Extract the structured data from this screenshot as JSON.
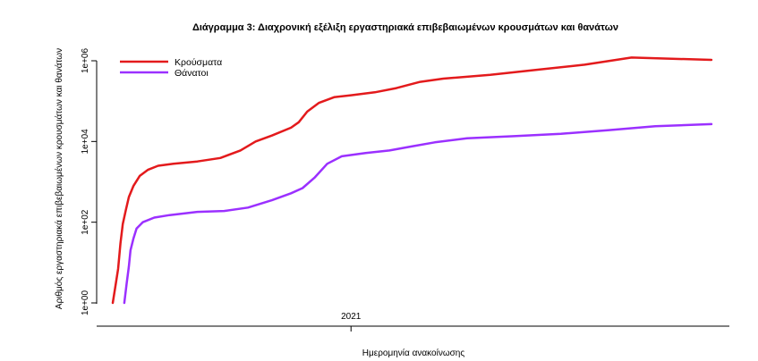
{
  "chart_data": {
    "type": "line",
    "title": "Διάγραμμα 3: Διαχρονική εξέλιξη εργαστηριακά επιβεβαιωμένων κρουσμάτων και θανάτων",
    "xlabel": "Ημερομηνία ανακοίνωσης",
    "ylabel": "Αριθμός εργαστηριακά επιβεβαιωμένων κρουσμάτων και θανάτων",
    "y_scale": "log10",
    "ylim": [
      1,
      1000000
    ],
    "y_ticks": [
      {
        "value": 1,
        "label": "1e+00"
      },
      {
        "value": 100,
        "label": "1e+02"
      },
      {
        "value": 10000,
        "label": "1e+04"
      },
      {
        "value": 1000000,
        "label": "1e+06"
      }
    ],
    "xlim": [
      "2020-02-26",
      "2022-04-15"
    ],
    "x_ticks": [
      {
        "value": "2021-01-01",
        "label": "2021"
      }
    ],
    "grid": false,
    "legend_position": "top-left",
    "series": [
      {
        "name": "Κρούσματα",
        "color": "#e31a1c",
        "points": [
          [
            "2020-02-26",
            1
          ],
          [
            "2020-03-01",
            3
          ],
          [
            "2020-03-04",
            7
          ],
          [
            "2020-03-07",
            30
          ],
          [
            "2020-03-10",
            90
          ],
          [
            "2020-03-14",
            200
          ],
          [
            "2020-03-18",
            420
          ],
          [
            "2020-03-24",
            800
          ],
          [
            "2020-04-01",
            1400
          ],
          [
            "2020-04-12",
            2000
          ],
          [
            "2020-04-25",
            2500
          ],
          [
            "2020-05-15",
            2800
          ],
          [
            "2020-06-15",
            3200
          ],
          [
            "2020-07-15",
            3900
          ],
          [
            "2020-08-10",
            6000
          ],
          [
            "2020-08-30",
            10000
          ],
          [
            "2020-09-20",
            14000
          ],
          [
            "2020-10-15",
            22000
          ],
          [
            "2020-10-25",
            30000
          ],
          [
            "2020-11-05",
            55000
          ],
          [
            "2020-11-20",
            90000
          ],
          [
            "2020-12-10",
            125000
          ],
          [
            "2021-01-01",
            140000
          ],
          [
            "2021-02-01",
            165000
          ],
          [
            "2021-03-01",
            210000
          ],
          [
            "2021-04-01",
            300000
          ],
          [
            "2021-05-01",
            360000
          ],
          [
            "2021-07-01",
            450000
          ],
          [
            "2021-09-01",
            600000
          ],
          [
            "2021-11-01",
            800000
          ],
          [
            "2022-01-01",
            1200000
          ],
          [
            "2022-04-15",
            1050000
          ]
        ]
      },
      {
        "name": "Θάνατοι",
        "color": "#9b30ff",
        "points": [
          [
            "2020-03-12",
            1
          ],
          [
            "2020-03-15",
            3
          ],
          [
            "2020-03-18",
            8
          ],
          [
            "2020-03-20",
            20
          ],
          [
            "2020-03-24",
            40
          ],
          [
            "2020-03-28",
            70
          ],
          [
            "2020-04-05",
            100
          ],
          [
            "2020-04-20",
            130
          ],
          [
            "2020-05-10",
            150
          ],
          [
            "2020-06-15",
            180
          ],
          [
            "2020-07-20",
            190
          ],
          [
            "2020-08-20",
            230
          ],
          [
            "2020-09-20",
            350
          ],
          [
            "2020-10-15",
            520
          ],
          [
            "2020-10-30",
            700
          ],
          [
            "2020-11-15",
            1300
          ],
          [
            "2020-12-01",
            2800
          ],
          [
            "2020-12-20",
            4300
          ],
          [
            "2021-01-20",
            5200
          ],
          [
            "2021-02-20",
            6000
          ],
          [
            "2021-03-20",
            7500
          ],
          [
            "2021-04-20",
            9500
          ],
          [
            "2021-06-01",
            12000
          ],
          [
            "2021-08-01",
            13500
          ],
          [
            "2021-10-01",
            15500
          ],
          [
            "2021-12-01",
            19000
          ],
          [
            "2022-02-01",
            24000
          ],
          [
            "2022-04-15",
            27000
          ]
        ]
      }
    ]
  }
}
